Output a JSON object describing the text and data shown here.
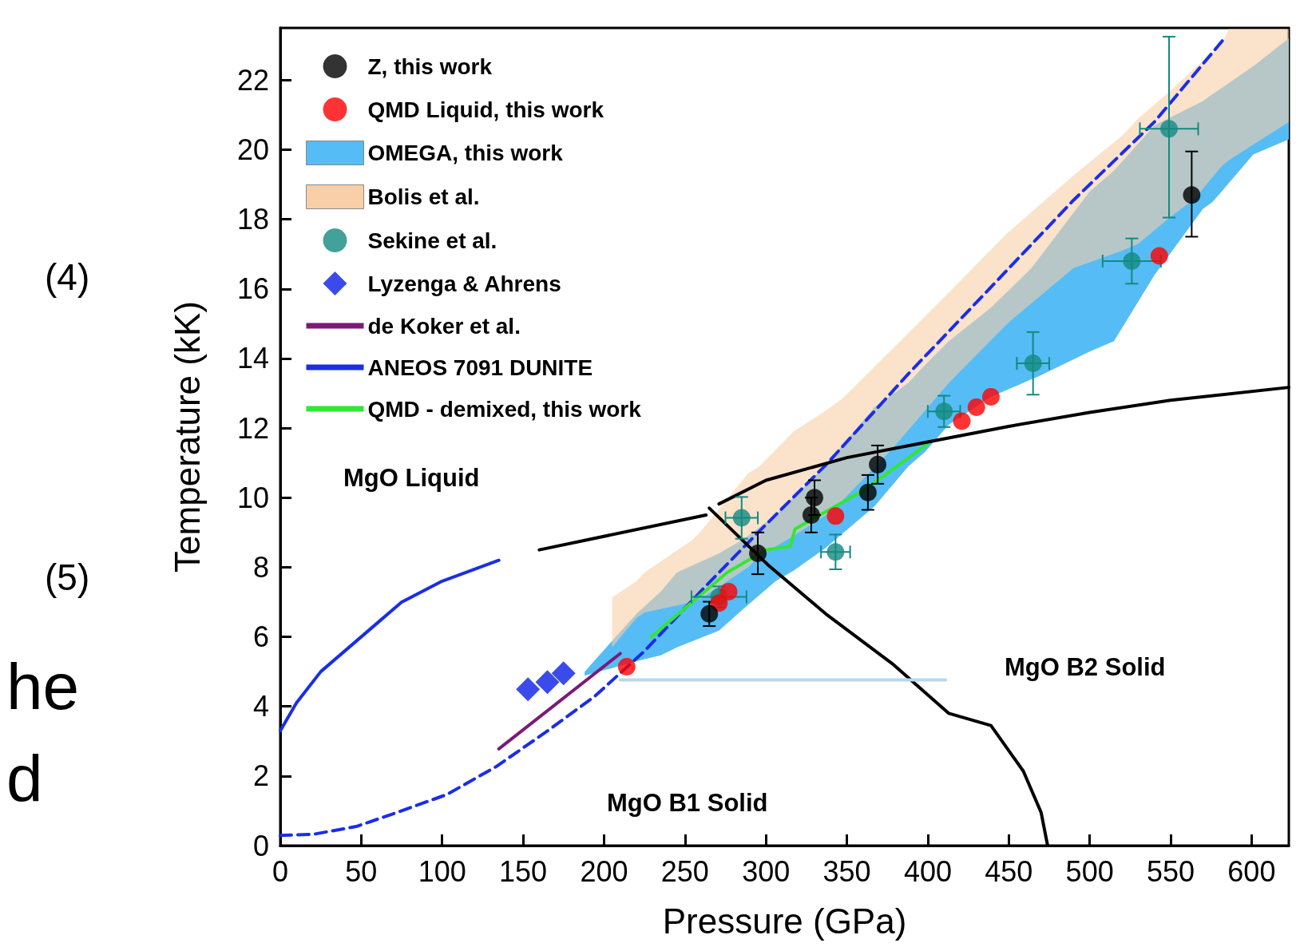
{
  "chart_data": {
    "type": "scatter",
    "xlabel": "Pressure (GPa)",
    "ylabel": "Temperature (kK)",
    "xlim": [
      0,
      623
    ],
    "ylim": [
      0,
      23.5
    ],
    "xticks": [
      0,
      50,
      100,
      150,
      200,
      250,
      300,
      350,
      400,
      450,
      500,
      550,
      600
    ],
    "yticks": [
      0,
      2,
      4,
      6,
      8,
      10,
      12,
      14,
      16,
      18,
      20,
      22
    ],
    "grid": false,
    "legend": "top left",
    "annotations": [
      "MgO Liquid",
      "MgO B2 Solid",
      "MgO B1 Solid",
      "(4)",
      "(5)",
      "he",
      "d"
    ],
    "series": [
      {
        "name": "Z, this work",
        "marker": "circle",
        "color": "#000000",
        "x": [
          265,
          295,
          328,
          330,
          363,
          369,
          563
        ],
        "values": [
          6.66,
          8.4,
          9.5,
          10.0,
          10.15,
          10.95,
          18.7
        ],
        "errors": [
          0.35,
          0.6,
          0.5,
          0.5,
          0.5,
          0.55,
          [
            17.5,
            19.95
          ]
        ]
      },
      {
        "name": "QMD Liquid, this work",
        "marker": "circle",
        "color": "#ff0000",
        "x": [
          214,
          271,
          277,
          343,
          421,
          430,
          439,
          543
        ],
        "values": [
          5.14,
          6.97,
          7.3,
          9.47,
          12.2,
          12.6,
          12.9,
          16.95
        ]
      },
      {
        "name": "OMEGA, this work",
        "type": "area",
        "color": "#56bcf5",
        "x": [
          188,
          220,
          235,
          245,
          271,
          286,
          306,
          317,
          337,
          367,
          388,
          398,
          413,
          439,
          464,
          469,
          500,
          515,
          540,
          570,
          576,
          601,
          623
        ],
        "values": [
          null,
          null,
          null,
          null,
          null,
          null,
          null,
          null,
          null,
          null,
          null,
          null,
          null,
          null,
          null,
          null,
          null,
          null,
          null,
          null,
          null,
          null,
          null
        ],
        "upper": [
          5.0,
          6.66,
          7.3,
          7.85,
          8.4,
          8.8,
          9.5,
          10.0,
          10.94,
          12.6,
          13.3,
          13.8,
          14.5,
          15.46,
          16.6,
          16.9,
          18.8,
          19.4,
          20.7,
          21.4,
          21.6,
          22.4,
          23.2
        ],
        "lower": [
          4.88,
          5.3,
          5.47,
          5.7,
          6.18,
          6.8,
          7.6,
          7.9,
          8.56,
          9.75,
          10.9,
          11.3,
          12.1,
          12.9,
          13.4,
          13.5,
          14.2,
          14.5,
          16.4,
          18.3,
          18.5,
          19.86,
          20.3
        ]
      },
      {
        "name": "Bolis et al.",
        "type": "area",
        "color": "#f8cfa8",
        "x": [
          205,
          220,
          225,
          255,
          261,
          289,
          296,
          317,
          337,
          347,
          378,
          413,
          449,
          490,
          520,
          530,
          550,
          565,
          581,
          586,
          623
        ],
        "values": [
          null,
          null,
          null,
          null,
          null,
          null,
          null,
          null,
          null,
          null,
          null,
          null,
          null,
          null,
          null,
          null,
          null,
          null,
          null,
          null,
          null
        ],
        "upper": [
          7.13,
          7.6,
          7.85,
          8.8,
          9.1,
          10.7,
          10.9,
          11.9,
          12.5,
          12.84,
          14.27,
          15.9,
          17.6,
          19.26,
          20.4,
          20.9,
          21.7,
          22.35,
          23.0,
          23.47,
          23.47
        ],
        "lower": [
          5.7,
          6.54,
          6.7,
          7.0,
          7.13,
          8.0,
          8.32,
          8.9,
          9.5,
          9.9,
          11.4,
          13.3,
          15.0,
          16.6,
          17.1,
          17.3,
          18.07,
          18.6,
          19.5,
          19.7,
          20.8
        ]
      },
      {
        "name": "Sekine et al.",
        "marker": "circle",
        "color": "#138a80",
        "x": [
          271,
          285,
          343,
          410,
          465,
          526,
          549
        ],
        "values": [
          7.15,
          9.42,
          8.44,
          12.48,
          13.86,
          16.8,
          20.6
        ],
        "errors": [
          0.3,
          0.6,
          0.5,
          0.45,
          0.9,
          0.65,
          [
            18.05,
            23.25
          ]
        ],
        "xerrors": [
          17,
          10,
          9,
          10,
          10,
          18,
          18
        ]
      },
      {
        "name": "Lyzenga & Ahrens",
        "marker": "diamond",
        "color": "#0a1ee6",
        "x": [
          153,
          165,
          175
        ],
        "values": [
          4.49,
          4.7,
          4.95
        ]
      },
      {
        "name": "de Koker et al.",
        "type": "line",
        "color": "#7b1a78",
        "x": [
          135,
          210
        ],
        "values": [
          2.78,
          5.52
        ]
      },
      {
        "name": "ANEOS 7091 DUNITE",
        "type": "line",
        "line_style": "dashed",
        "color": "#1a2ee6",
        "x": [
          0,
          21,
          47,
          72,
          103,
          133,
          164,
          194,
          225,
          261,
          296,
          337,
          388,
          439,
          490,
          540,
          583
        ],
        "values": [
          0.29,
          0.33,
          0.55,
          0.95,
          1.47,
          2.26,
          3.26,
          4.28,
          5.59,
          7.37,
          9.04,
          10.94,
          13.56,
          16.05,
          18.55,
          20.8,
          23.19
        ]
      },
      {
        "name": "QMD - demixed, this work",
        "type": "line",
        "color": "#33e633",
        "x": [
          229,
          276,
          300,
          315,
          318,
          360,
          400
        ],
        "values": [
          5.99,
          7.85,
          8.5,
          8.6,
          9.1,
          10.2,
          11.55
        ]
      },
      {
        "type": "line",
        "color": "#1a2ee6",
        "x": [
          0,
          10,
          25,
          60,
          75,
          100,
          135
        ],
        "values": [
          3.3,
          4.1,
          5.0,
          6.4,
          7.0,
          7.6,
          8.2
        ]
      },
      {
        "type": "line",
        "color": "#000000",
        "x": [
          160,
          263
        ],
        "values": [
          8.5,
          9.5
        ]
      },
      {
        "type": "line",
        "color": "#000000",
        "x": [
          271,
          300,
          350,
          400,
          450,
          500,
          550,
          623
        ],
        "values": [
          9.82,
          10.5,
          11.15,
          11.6,
          12.05,
          12.45,
          12.8,
          13.17
        ]
      },
      {
        "type": "line",
        "color": "#000000",
        "x": [
          265,
          301,
          337,
          378,
          413,
          439,
          459,
          470,
          474
        ],
        "values": [
          9.7,
          8.08,
          6.66,
          5.23,
          3.8,
          3.45,
          2.14,
          0.95,
          0
        ]
      },
      {
        "type": "line",
        "color": "#b8d8ee",
        "x": [
          210,
          411
        ],
        "values": [
          4.76,
          4.76
        ]
      }
    ]
  }
}
